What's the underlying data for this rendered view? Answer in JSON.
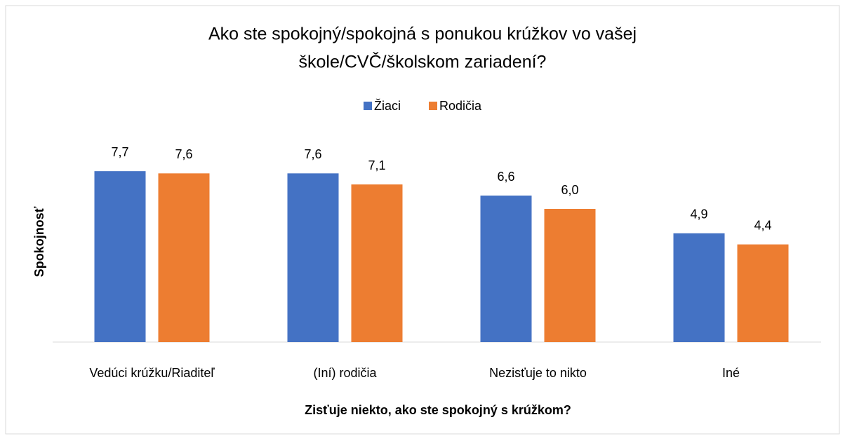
{
  "chart_data": {
    "type": "bar",
    "title": [
      "Ako ste spokojný/spokojná s ponukou krúžkov vo vašej",
      "škole/CVČ/školskom zariadení?"
    ],
    "x_label": "Zisťuje niekto, ako ste spokojný s krúžkom?",
    "y_label": "Spokojnosť",
    "categories": [
      "Vedúci krúžku/Riaditeľ",
      "(Iní) rodičia",
      "Nezisťuje to nikto",
      "Iné"
    ],
    "series": [
      {
        "name": "Žiaci",
        "color": "#4472c4",
        "values": [
          7.7,
          7.6,
          6.6,
          4.9
        ],
        "value_labels": [
          "7,7",
          "7,6",
          "6,6",
          "4,9"
        ]
      },
      {
        "name": "Rodičia",
        "color": "#ed7d31",
        "values": [
          7.6,
          7.1,
          6.0,
          4.4
        ],
        "value_labels": [
          "7,6",
          "7,1",
          "6,0",
          "4,4"
        ]
      }
    ],
    "ylim": [
      0,
      9
    ],
    "legend": "top"
  }
}
